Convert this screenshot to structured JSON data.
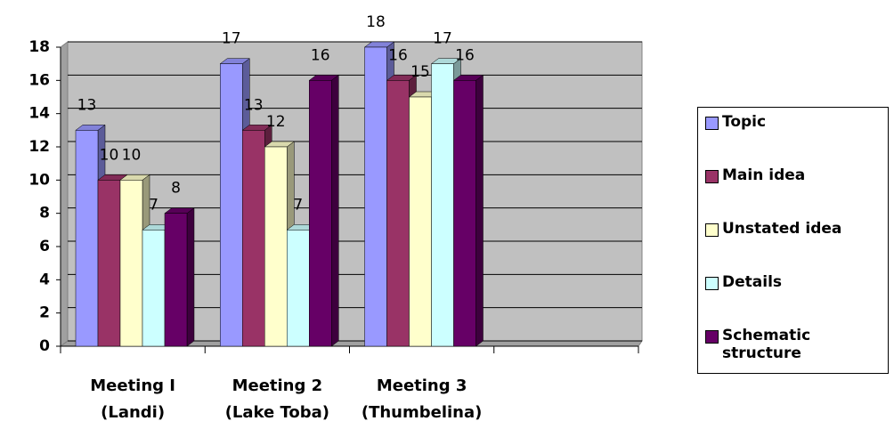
{
  "chart_data": {
    "type": "bar3d",
    "categories": [
      "Meeting I\n(Landi)",
      "Meeting 2\n(Lake Toba)",
      "Meeting 3\n(Thumbelina)",
      null
    ],
    "series": [
      {
        "name": "Topic",
        "color": "#9999ff",
        "values": [
          13,
          17,
          18,
          null
        ]
      },
      {
        "name": "Main idea",
        "color": "#993366",
        "values": [
          10,
          13,
          16,
          null
        ]
      },
      {
        "name": "Unstated idea",
        "color": "#ffffcc",
        "values": [
          10,
          12,
          15,
          null
        ]
      },
      {
        "name": "Details",
        "color": "#ccffff",
        "values": [
          7,
          7,
          17,
          null
        ]
      },
      {
        "name": "Schematic structure",
        "color": "#660066",
        "values": [
          8,
          16,
          16,
          null
        ]
      }
    ],
    "ylim": [
      0,
      18
    ],
    "yticks": [
      0,
      2,
      4,
      6,
      8,
      10,
      12,
      14,
      16,
      18
    ],
    "grid": true,
    "legend": "right"
  }
}
